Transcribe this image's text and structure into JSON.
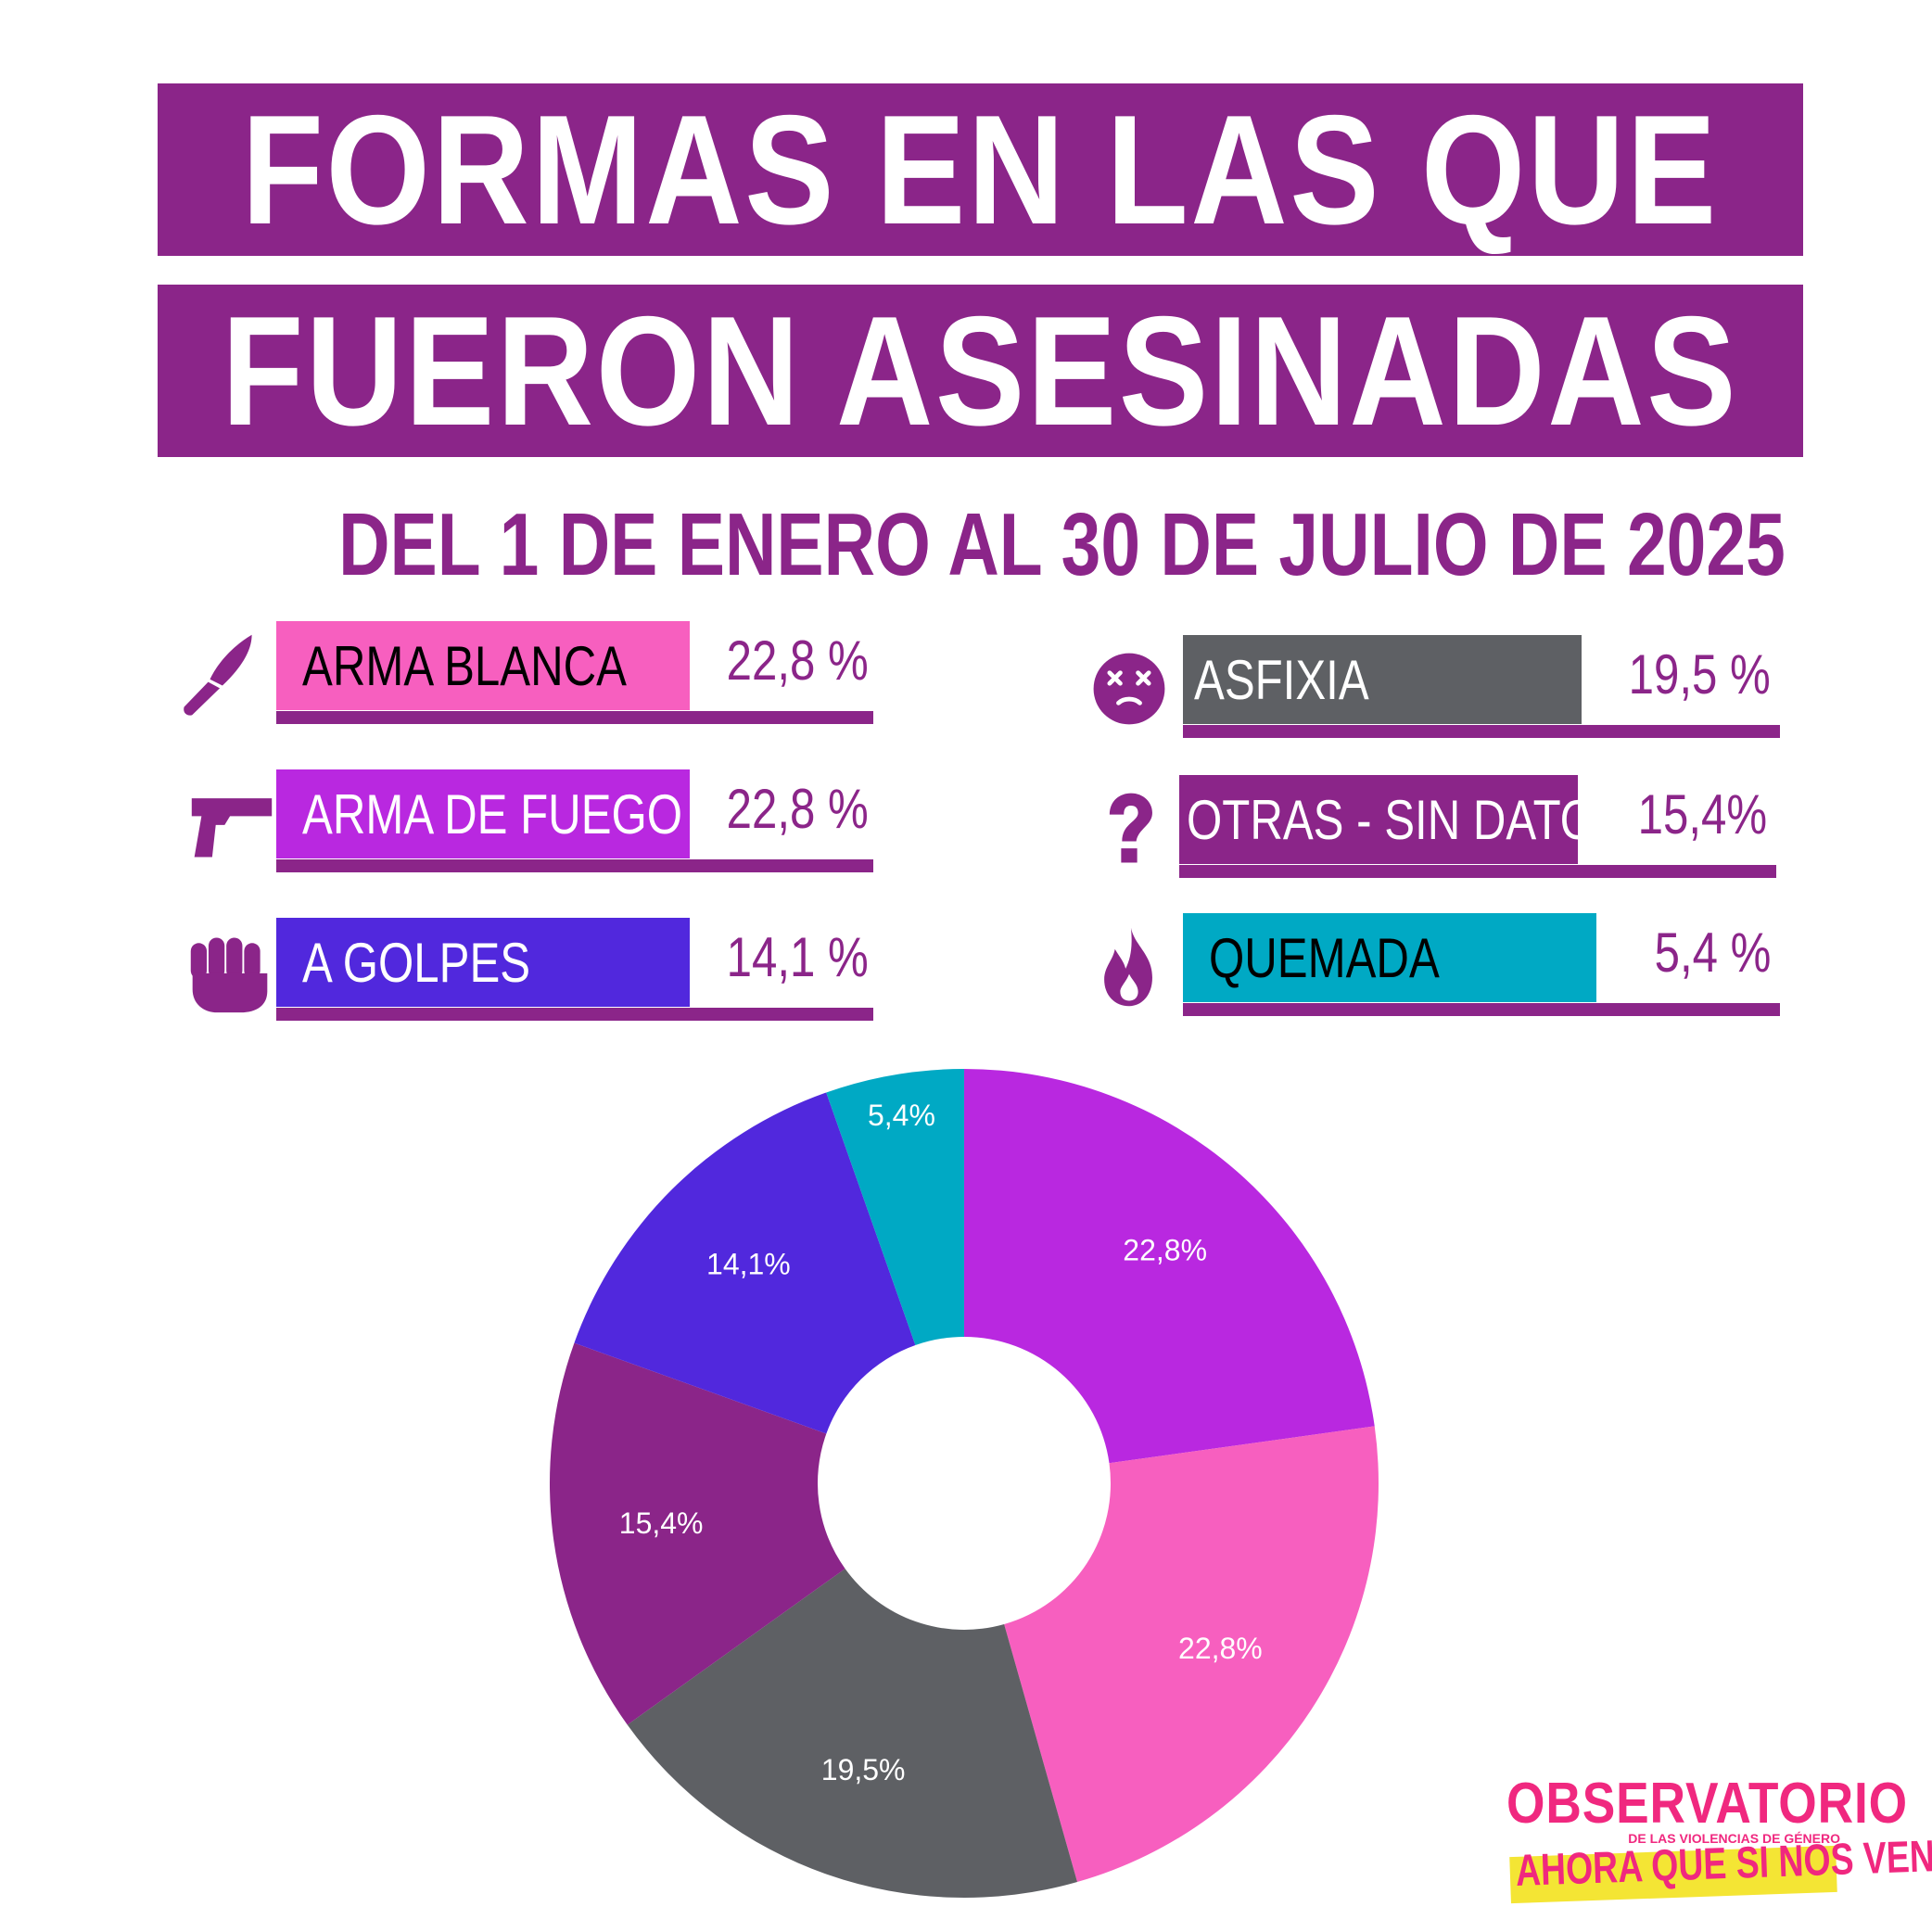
{
  "title": {
    "line1": "FORMAS EN LAS QUE",
    "line2": "FUERON ASESINADAS",
    "subtitle": "DEL 1 DE ENERO AL 30 DE JULIO DE 2025"
  },
  "colors": {
    "brand_purple": "#8B2589",
    "arma_blanca": "#F75FBF",
    "arma_de_fuego": "#B928E0",
    "a_golpes": "#5128DD",
    "asfixia": "#5E6064",
    "otras_sin_datos": "#8B2589",
    "quemada": "#00A9C4"
  },
  "legend": {
    "left": [
      {
        "label": "ARMA BLANCA",
        "value": "22,8 %",
        "icon": "knife-icon"
      },
      {
        "label": "ARMA DE FUEGO",
        "value": "22,8 %",
        "icon": "pistol-icon"
      },
      {
        "label": "A GOLPES",
        "value": "14,1 %",
        "icon": "fist-icon"
      }
    ],
    "right": [
      {
        "label": "ASFIXIA",
        "value": "19,5 %",
        "icon": "dizzy-face-icon"
      },
      {
        "label": "OTRAS - SIN DATOS",
        "value": "15,4%",
        "icon": "question-mark-icon"
      },
      {
        "label": "QUEMADA",
        "value": "5,4 %",
        "icon": "fire-icon"
      }
    ]
  },
  "chart_data": {
    "type": "pie",
    "donut": true,
    "slices": [
      {
        "category": "ARMA DE FUEGO",
        "value": 22.8,
        "label": "22,8%",
        "color": "#B928E0"
      },
      {
        "category": "ARMA BLANCA",
        "value": 22.8,
        "label": "22,8%",
        "color": "#F75FBF"
      },
      {
        "category": "ASFIXIA",
        "value": 19.5,
        "label": "19,5%",
        "color": "#5E6064"
      },
      {
        "category": "OTRAS - SIN DATOS",
        "value": 15.4,
        "label": "15,4%",
        "color": "#8B2589"
      },
      {
        "category": "A GOLPES",
        "value": 14.1,
        "label": "14,1%",
        "color": "#5128DD"
      },
      {
        "category": "QUEMADA",
        "value": 5.4,
        "label": "5,4%",
        "color": "#00A9C4"
      }
    ]
  },
  "logo": {
    "name": "OBSERVATORIO",
    "subtitle": "DE LAS VIOLENCIAS DE GÉNERO",
    "tagline": "AHORA QUE SI NOS VEN"
  }
}
